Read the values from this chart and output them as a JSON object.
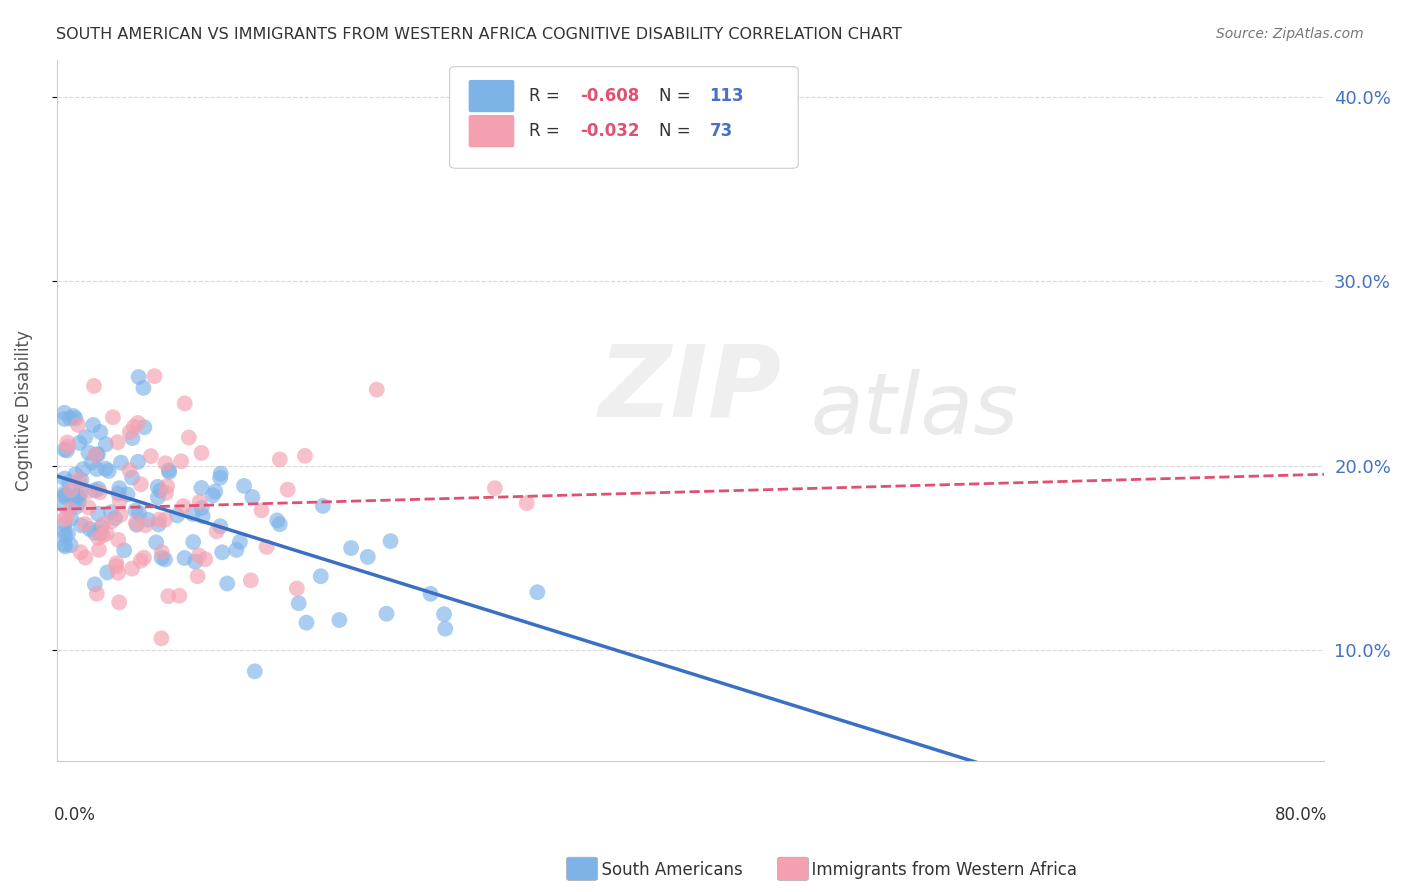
{
  "title": "SOUTH AMERICAN VS IMMIGRANTS FROM WESTERN AFRICA COGNITIVE DISABILITY CORRELATION CHART",
  "source": "Source: ZipAtlas.com",
  "ylabel": "Cognitive Disability",
  "yticks": [
    0.1,
    0.2,
    0.3,
    0.4
  ],
  "ytick_labels": [
    "10.0%",
    "20.0%",
    "30.0%",
    "40.0%"
  ],
  "xlim": [
    0.0,
    0.8
  ],
  "ylim": [
    0.04,
    0.42
  ],
  "blue_R": -0.608,
  "blue_N": 113,
  "pink_R": -0.032,
  "pink_N": 73,
  "blue_color": "#7EB3E8",
  "pink_color": "#F4A0B0",
  "blue_line_color": "#3B6FC4",
  "pink_line_color": "#E05070",
  "legend_label_1": "South Americans",
  "legend_label_2": "Immigrants from Western Africa",
  "background_color": "#FFFFFF",
  "grid_color": "#D8D8D8",
  "right_axis_color": "#4472C4",
  "title_color": "#333333",
  "source_color": "#777777"
}
